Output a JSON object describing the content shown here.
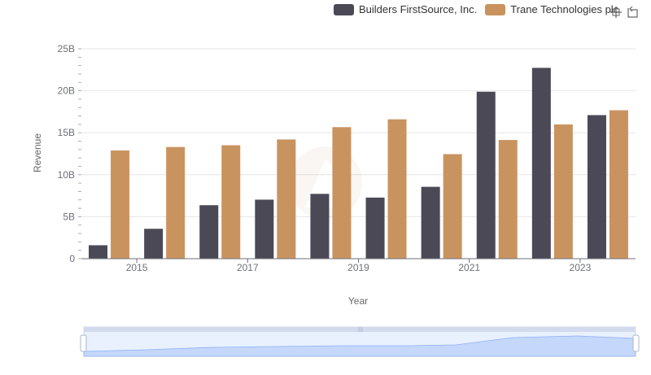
{
  "legend": {
    "items": [
      {
        "label": "Builders FirstSource, Inc.",
        "color": "#4a4955"
      },
      {
        "label": "Trane Technologies plc",
        "color": "#c9935f"
      }
    ]
  },
  "toolbox": {
    "icons": [
      "zoom-icon",
      "restore-icon"
    ]
  },
  "chart_data": {
    "type": "bar",
    "categories": [
      "2014",
      "2015",
      "2016",
      "2017",
      "2018",
      "2019",
      "2020",
      "2021",
      "2022",
      "2023"
    ],
    "x_tick_labels": [
      "2015",
      "2017",
      "2019",
      "2021",
      "2023"
    ],
    "series": [
      {
        "name": "Builders FirstSource, Inc.",
        "color": "#4a4955",
        "values": [
          1.6,
          3.56,
          6.37,
          7.03,
          7.72,
          7.28,
          8.56,
          19.89,
          22.73,
          17.1
        ]
      },
      {
        "name": "Trane Technologies plc",
        "color": "#c9935f",
        "values": [
          12.89,
          13.3,
          13.51,
          14.2,
          15.67,
          16.6,
          12.45,
          14.14,
          15.99,
          17.68
        ]
      }
    ],
    "xlabel": "Year",
    "ylabel": "Revenue",
    "ylim": [
      0,
      25
    ],
    "y_ticks": [
      0,
      5,
      10,
      15,
      20,
      25
    ],
    "y_tick_labels": [
      "0",
      "5B",
      "10B",
      "15B",
      "20B",
      "25B"
    ],
    "grid": true
  },
  "datazoom": {
    "range": [
      0,
      100
    ]
  }
}
